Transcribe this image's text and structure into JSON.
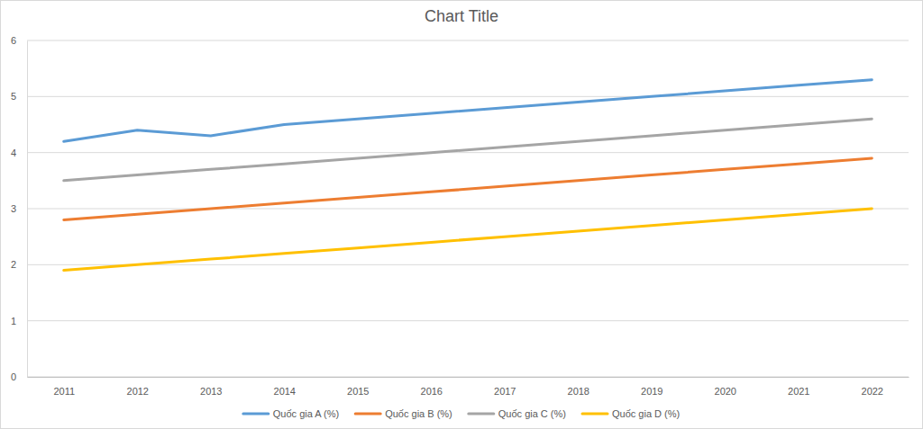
{
  "chart_data": {
    "type": "line",
    "title": "Chart Title",
    "categories": [
      "2011",
      "2012",
      "2013",
      "2014",
      "2015",
      "2016",
      "2017",
      "2018",
      "2019",
      "2020",
      "2021",
      "2022"
    ],
    "series": [
      {
        "name": "Quốc gia A (%)",
        "color": "#5b9bd5",
        "values": [
          4.2,
          4.4,
          4.3,
          4.5,
          4.6,
          4.7,
          4.8,
          4.9,
          5.0,
          5.1,
          5.2,
          5.3
        ]
      },
      {
        "name": "Quốc gia B (%)",
        "color": "#ed7d31",
        "values": [
          2.8,
          2.9,
          3.0,
          3.1,
          3.2,
          3.3,
          3.4,
          3.5,
          3.6,
          3.7,
          3.8,
          3.9
        ]
      },
      {
        "name": "Quốc gia C (%)",
        "color": "#a5a5a5",
        "values": [
          3.5,
          3.6,
          3.7,
          3.8,
          3.9,
          4.0,
          4.1,
          4.2,
          4.3,
          4.4,
          4.5,
          4.6
        ]
      },
      {
        "name": "Quốc gia D (%)",
        "color": "#ffc000",
        "values": [
          1.9,
          2.0,
          2.1,
          2.2,
          2.3,
          2.4,
          2.5,
          2.6,
          2.7,
          2.8,
          2.9,
          3.0
        ]
      }
    ],
    "ylim": [
      0,
      6
    ],
    "yticks": [
      0,
      1,
      2,
      3,
      4,
      5,
      6
    ],
    "grid": true,
    "legend": "bottom"
  }
}
